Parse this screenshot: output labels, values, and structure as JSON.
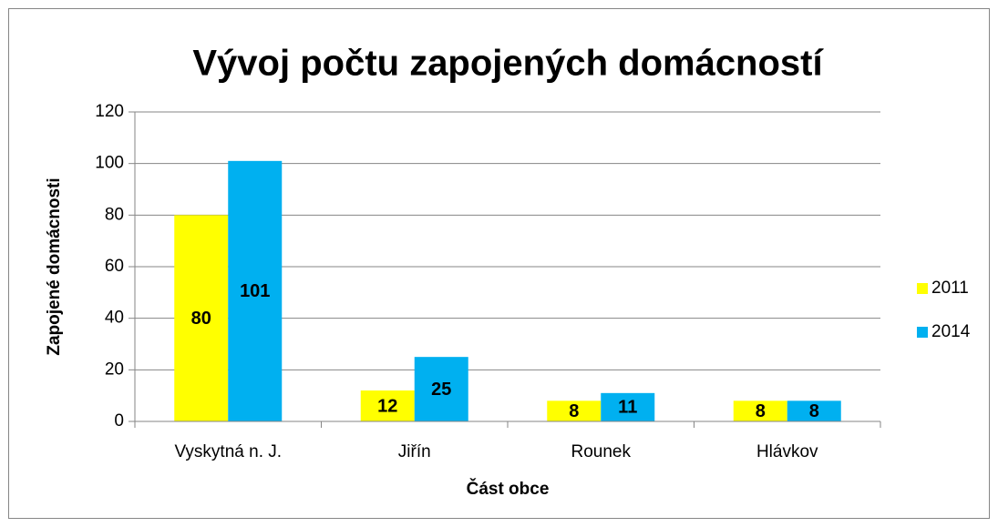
{
  "chart_data": {
    "type": "bar",
    "title": "Vývoj počtu zapojených domácností",
    "x_label": "Část obce",
    "y_label": "Zapojené domácnosti",
    "categories": [
      "Vyskytná n. J.",
      "Jiřín",
      "Rounek",
      "Hlávkov"
    ],
    "series": [
      {
        "name": "2011",
        "color": "#ffff00",
        "values": [
          80,
          12,
          8,
          8
        ]
      },
      {
        "name": "2014",
        "color": "#00b0f0",
        "values": [
          101,
          25,
          11,
          8
        ]
      }
    ],
    "ylim": [
      0,
      120
    ],
    "yticks": [
      0,
      20,
      40,
      60,
      80,
      100,
      120
    ],
    "grid": true,
    "legend": "right",
    "data_labels": true
  }
}
